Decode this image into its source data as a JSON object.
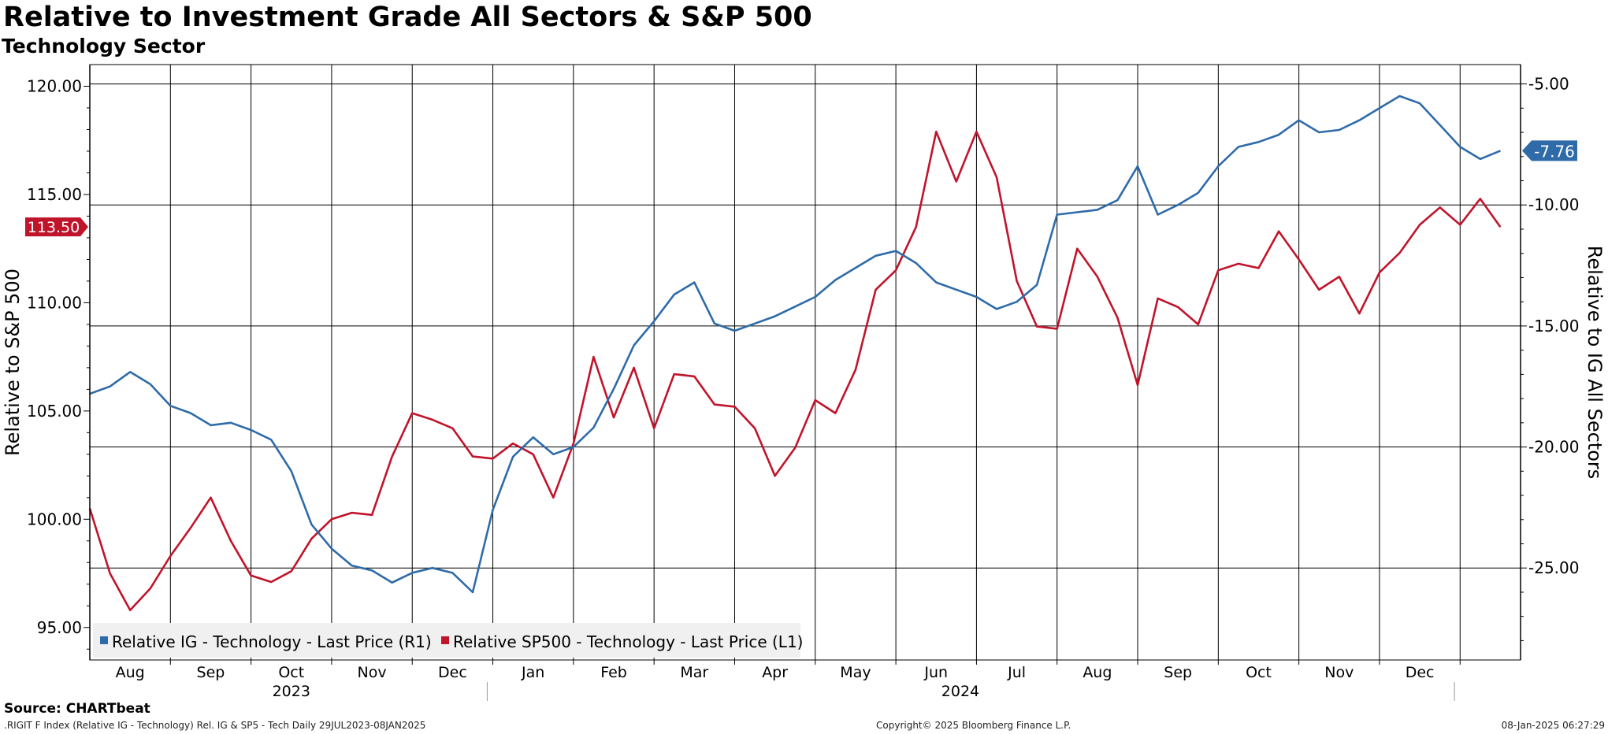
{
  "header": {
    "title": "Relative to Investment Grade All Sectors & S&P 500",
    "subtitle": "Technology Sector"
  },
  "footer": {
    "source": "Source: CHARTbeat",
    "index_info": ".RIGIT F Index (Relative IG - Technology) Rel. IG & SP5 - Tech  Daily 29JUL2023-08JAN2025",
    "copyright": "Copyright© 2025 Bloomberg Finance L.P.",
    "timestamp": "08-Jan-2025 06:27:29"
  },
  "colors": {
    "ig_series": "#2e6ba8",
    "sp_series": "#c0142b"
  },
  "chart_data": {
    "type": "line",
    "title": "Relative to Investment Grade All Sectors & S&P 500",
    "subtitle": "Technology Sector",
    "y_left": {
      "label": "Relative to S&P 500",
      "range": [
        93.5,
        121.0
      ],
      "ticks": [
        "95.00",
        "100.00",
        "105.00",
        "110.00",
        "115.00",
        "120.00"
      ]
    },
    "y_right": {
      "label": "Relative to IG All Sectors",
      "range": [
        -28.8,
        -4.2
      ],
      "ticks": [
        "-5.00",
        "-10.00",
        "-15.00",
        "-20.00",
        "-25.00"
      ]
    },
    "x_range_months": [
      0,
      17.75
    ],
    "x_months": [
      "Aug",
      "Sep",
      "Oct",
      "Nov",
      "Dec",
      "Jan",
      "Feb",
      "Mar",
      "Apr",
      "May",
      "Jun",
      "Jul",
      "Aug",
      "Sep",
      "Oct",
      "Nov",
      "Dec"
    ],
    "x_years": [
      "2023",
      "2024"
    ],
    "legend": [
      "Relative IG - Technology - Last Price (R1)",
      "Relative SP500 - Technology - Last Price (L1)"
    ],
    "last_value_labels": {
      "ig": "-7.76",
      "sp": "113.50"
    },
    "series": [
      {
        "name": "Relative IG - Technology - Last Price (R1)",
        "axis": "right",
        "x": [
          0,
          0.25,
          0.5,
          0.75,
          1.0,
          1.25,
          1.5,
          1.75,
          2.0,
          2.25,
          2.5,
          2.75,
          3.0,
          3.25,
          3.5,
          3.75,
          4.0,
          4.25,
          4.5,
          4.75,
          5.0,
          5.25,
          5.5,
          5.75,
          6.0,
          6.25,
          6.5,
          6.75,
          7.0,
          7.25,
          7.5,
          7.75,
          8.0,
          8.25,
          8.5,
          8.75,
          9.0,
          9.25,
          9.5,
          9.75,
          10.0,
          10.25,
          10.5,
          10.75,
          11.0,
          11.25,
          11.5,
          11.75,
          12.0,
          12.25,
          12.5,
          12.75,
          13.0,
          13.25,
          13.5,
          13.75,
          14.0,
          14.25,
          14.5,
          14.75,
          15.0,
          15.25,
          15.5,
          15.75,
          16.0,
          16.25,
          16.5,
          16.75,
          17.0,
          17.25,
          17.5
        ],
        "values": [
          -17.8,
          -17.5,
          -16.9,
          -17.4,
          -18.3,
          -18.6,
          -19.1,
          -19.0,
          -19.3,
          -19.7,
          -21.0,
          -23.2,
          -24.2,
          -24.9,
          -25.1,
          -25.6,
          -25.2,
          -25.0,
          -25.2,
          -26.0,
          -22.6,
          -20.4,
          -19.6,
          -20.3,
          -20.0,
          -19.2,
          -17.6,
          -15.8,
          -14.8,
          -13.7,
          -13.2,
          -14.9,
          -15.2,
          -14.9,
          -14.6,
          -14.2,
          -13.8,
          -13.1,
          -12.6,
          -12.1,
          -11.9,
          -12.4,
          -13.2,
          -13.5,
          -13.8,
          -14.3,
          -14.0,
          -13.3,
          -10.4,
          -10.3,
          -10.2,
          -9.8,
          -8.4,
          -10.4,
          -10.0,
          -9.5,
          -8.4,
          -7.6,
          -7.4,
          -7.1,
          -6.5,
          -7.0,
          -6.9,
          -6.5,
          -6.0,
          -5.5,
          -5.8,
          -6.7,
          -7.6,
          -8.1,
          -7.76
        ]
      },
      {
        "name": "Relative SP500 - Technology - Last Price (L1)",
        "axis": "left",
        "x": [
          0,
          0.25,
          0.5,
          0.75,
          1.0,
          1.25,
          1.5,
          1.75,
          2.0,
          2.25,
          2.5,
          2.75,
          3.0,
          3.25,
          3.5,
          3.75,
          4.0,
          4.25,
          4.5,
          4.75,
          5.0,
          5.25,
          5.5,
          5.75,
          6.0,
          6.25,
          6.5,
          6.75,
          7.0,
          7.25,
          7.5,
          7.75,
          8.0,
          8.25,
          8.5,
          8.75,
          9.0,
          9.25,
          9.5,
          9.75,
          10.0,
          10.25,
          10.5,
          10.75,
          11.0,
          11.25,
          11.5,
          11.75,
          12.0,
          12.25,
          12.5,
          12.75,
          13.0,
          13.25,
          13.5,
          13.75,
          14.0,
          14.25,
          14.5,
          14.75,
          15.0,
          15.25,
          15.5,
          15.75,
          16.0,
          16.25,
          16.5,
          16.75,
          17.0,
          17.25,
          17.5
        ],
        "values": [
          100.5,
          97.5,
          95.8,
          96.8,
          98.3,
          99.6,
          101.0,
          99.0,
          97.4,
          97.1,
          97.6,
          99.1,
          100.0,
          100.3,
          100.2,
          102.9,
          104.9,
          104.6,
          104.2,
          102.9,
          102.8,
          103.5,
          103.0,
          101.0,
          103.5,
          107.5,
          104.7,
          107.0,
          104.2,
          106.7,
          106.6,
          105.3,
          105.2,
          104.2,
          102.0,
          103.3,
          105.5,
          104.9,
          106.9,
          110.6,
          111.5,
          113.5,
          117.9,
          115.6,
          117.9,
          115.8,
          111.0,
          108.9,
          108.8,
          112.5,
          111.2,
          109.3,
          106.2,
          110.2,
          109.8,
          109.0,
          111.5,
          111.8,
          111.6,
          113.3,
          112.0,
          110.6,
          111.2,
          109.5,
          111.4,
          112.3,
          113.6,
          114.4,
          113.6,
          114.8,
          113.5
        ]
      }
    ]
  }
}
